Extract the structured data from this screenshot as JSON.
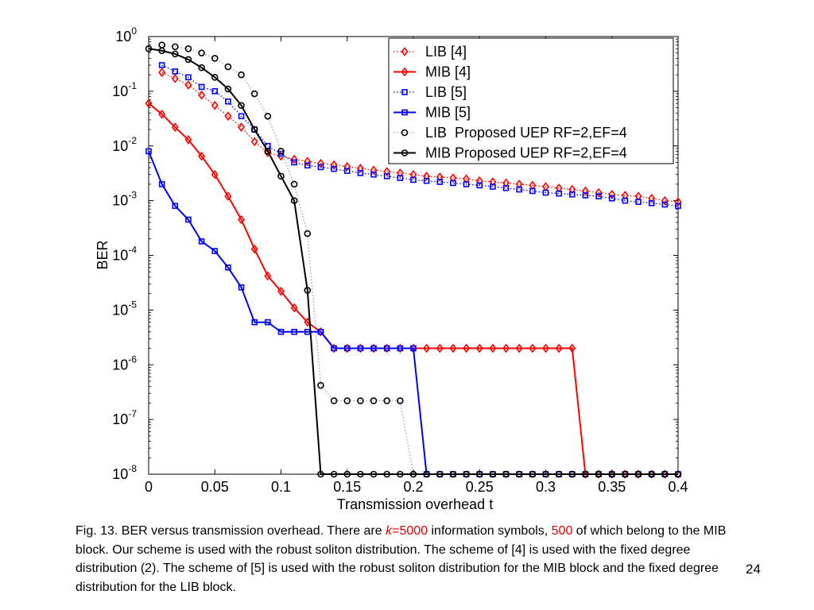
{
  "chart_data": {
    "type": "line",
    "xlabel": "Transmission overhead t",
    "ylabel": "BER",
    "xlim": [
      0,
      0.4
    ],
    "ylim": [
      1e-08,
      1
    ],
    "yscale": "log",
    "grid": false,
    "legend_position": "top-right",
    "x_ticks": [
      "0",
      "0.05",
      "0.1",
      "0.15",
      "0.2",
      "0.25",
      "0.3",
      "0.35",
      "0.4"
    ],
    "y_ticks": [
      {
        "base": "10",
        "exp": "0"
      },
      {
        "base": "10",
        "exp": "-1"
      },
      {
        "base": "10",
        "exp": "-2"
      },
      {
        "base": "10",
        "exp": "-3"
      },
      {
        "base": "10",
        "exp": "-4"
      },
      {
        "base": "10",
        "exp": "-5"
      },
      {
        "base": "10",
        "exp": "-6"
      },
      {
        "base": "10",
        "exp": "-7"
      },
      {
        "base": "10",
        "exp": "-8"
      }
    ],
    "series": [
      {
        "name": "LIB [4]",
        "color": "#ff0000",
        "marker": "diamond",
        "line": "dotted",
        "points": [
          [
            0.01,
            0.22
          ],
          [
            0.02,
            0.17
          ],
          [
            0.03,
            0.13
          ],
          [
            0.04,
            0.085
          ],
          [
            0.05,
            0.055
          ],
          [
            0.06,
            0.035
          ],
          [
            0.07,
            0.022
          ],
          [
            0.08,
            0.012
          ],
          [
            0.09,
            0.0075
          ],
          [
            0.1,
            0.0065
          ],
          [
            0.11,
            0.0057
          ],
          [
            0.12,
            0.0052
          ],
          [
            0.13,
            0.0048
          ],
          [
            0.14,
            0.0045
          ],
          [
            0.15,
            0.0042
          ],
          [
            0.16,
            0.0039
          ],
          [
            0.17,
            0.0036
          ],
          [
            0.18,
            0.0034
          ],
          [
            0.19,
            0.0032
          ],
          [
            0.2,
            0.003
          ],
          [
            0.21,
            0.0028
          ],
          [
            0.22,
            0.0027
          ],
          [
            0.23,
            0.0026
          ],
          [
            0.24,
            0.0025
          ],
          [
            0.25,
            0.0023
          ],
          [
            0.26,
            0.0022
          ],
          [
            0.27,
            0.0021
          ],
          [
            0.28,
            0.002
          ],
          [
            0.29,
            0.0019
          ],
          [
            0.3,
            0.0018
          ],
          [
            0.31,
            0.0017
          ],
          [
            0.32,
            0.0016
          ],
          [
            0.33,
            0.0015
          ],
          [
            0.34,
            0.0014
          ],
          [
            0.35,
            0.0013
          ],
          [
            0.36,
            0.00125
          ],
          [
            0.37,
            0.0012
          ],
          [
            0.38,
            0.0011
          ],
          [
            0.39,
            0.001
          ],
          [
            0.4,
            0.00095
          ]
        ]
      },
      {
        "name": "MIB [4]",
        "color": "#ff0000",
        "marker": "diamond",
        "line": "solid",
        "points": [
          [
            0,
            0.06
          ],
          [
            0.01,
            0.038
          ],
          [
            0.02,
            0.022
          ],
          [
            0.03,
            0.013
          ],
          [
            0.04,
            0.0065
          ],
          [
            0.05,
            0.003
          ],
          [
            0.06,
            0.0012
          ],
          [
            0.07,
            0.00045
          ],
          [
            0.08,
            0.00013
          ],
          [
            0.09,
            4.2e-05
          ],
          [
            0.1,
            2.2e-05
          ],
          [
            0.11,
            1.1e-05
          ],
          [
            0.12,
            6e-06
          ],
          [
            0.13,
            4e-06
          ],
          [
            0.14,
            2e-06
          ],
          [
            0.15,
            2e-06
          ],
          [
            0.16,
            2e-06
          ],
          [
            0.17,
            2e-06
          ],
          [
            0.18,
            2e-06
          ],
          [
            0.19,
            2e-06
          ],
          [
            0.2,
            2e-06
          ],
          [
            0.21,
            2e-06
          ],
          [
            0.22,
            2e-06
          ],
          [
            0.23,
            2e-06
          ],
          [
            0.24,
            2e-06
          ],
          [
            0.25,
            2e-06
          ],
          [
            0.26,
            2e-06
          ],
          [
            0.27,
            2e-06
          ],
          [
            0.28,
            2e-06
          ],
          [
            0.29,
            2e-06
          ],
          [
            0.3,
            2e-06
          ],
          [
            0.31,
            2e-06
          ],
          [
            0.32,
            2e-06
          ],
          [
            0.33,
            1e-08
          ],
          [
            0.34,
            1e-08
          ],
          [
            0.35,
            1e-08
          ],
          [
            0.36,
            1e-08
          ],
          [
            0.37,
            1e-08
          ],
          [
            0.38,
            1e-08
          ],
          [
            0.39,
            1e-08
          ],
          [
            0.4,
            1e-08
          ]
        ]
      },
      {
        "name": "LIB [5]",
        "color": "#0000ff",
        "marker": "square",
        "line": "dotted",
        "points": [
          [
            0.01,
            0.3
          ],
          [
            0.02,
            0.23
          ],
          [
            0.03,
            0.18
          ],
          [
            0.04,
            0.12
          ],
          [
            0.05,
            0.1
          ],
          [
            0.06,
            0.065
          ],
          [
            0.07,
            0.035
          ],
          [
            0.08,
            0.02
          ],
          [
            0.09,
            0.01
          ],
          [
            0.1,
            0.0072
          ],
          [
            0.11,
            0.005
          ],
          [
            0.12,
            0.0044
          ],
          [
            0.13,
            0.0041
          ],
          [
            0.14,
            0.0038
          ],
          [
            0.15,
            0.0035
          ],
          [
            0.16,
            0.0032
          ],
          [
            0.17,
            0.003
          ],
          [
            0.18,
            0.0028
          ],
          [
            0.19,
            0.0026
          ],
          [
            0.2,
            0.0024
          ],
          [
            0.21,
            0.0023
          ],
          [
            0.22,
            0.0022
          ],
          [
            0.23,
            0.0021
          ],
          [
            0.24,
            0.002
          ],
          [
            0.25,
            0.0019
          ],
          [
            0.26,
            0.0018
          ],
          [
            0.27,
            0.0017
          ],
          [
            0.28,
            0.0016
          ],
          [
            0.29,
            0.0015
          ],
          [
            0.3,
            0.0014
          ],
          [
            0.31,
            0.00135
          ],
          [
            0.32,
            0.0013
          ],
          [
            0.33,
            0.00125
          ],
          [
            0.34,
            0.0012
          ],
          [
            0.35,
            0.0011
          ],
          [
            0.36,
            0.001
          ],
          [
            0.37,
            0.00095
          ],
          [
            0.38,
            0.0009
          ],
          [
            0.39,
            0.00085
          ],
          [
            0.4,
            0.0008
          ]
        ]
      },
      {
        "name": "MIB [5]",
        "color": "#0000ff",
        "marker": "square",
        "line": "solid",
        "points": [
          [
            0,
            0.008
          ],
          [
            0.01,
            0.002
          ],
          [
            0.02,
            0.0008
          ],
          [
            0.03,
            0.00045
          ],
          [
            0.04,
            0.00018
          ],
          [
            0.05,
            0.00012
          ],
          [
            0.06,
            6e-05
          ],
          [
            0.07,
            2.6e-05
          ],
          [
            0.08,
            6e-06
          ],
          [
            0.09,
            6e-06
          ],
          [
            0.1,
            4e-06
          ],
          [
            0.11,
            4e-06
          ],
          [
            0.12,
            4e-06
          ],
          [
            0.13,
            4e-06
          ],
          [
            0.14,
            2e-06
          ],
          [
            0.15,
            2e-06
          ],
          [
            0.16,
            2e-06
          ],
          [
            0.17,
            2e-06
          ],
          [
            0.18,
            2e-06
          ],
          [
            0.19,
            2e-06
          ],
          [
            0.2,
            2e-06
          ],
          [
            0.21,
            1e-08
          ],
          [
            0.22,
            1e-08
          ],
          [
            0.23,
            1e-08
          ],
          [
            0.24,
            1e-08
          ],
          [
            0.25,
            1e-08
          ],
          [
            0.26,
            1e-08
          ],
          [
            0.27,
            1e-08
          ],
          [
            0.28,
            1e-08
          ],
          [
            0.29,
            1e-08
          ],
          [
            0.3,
            1e-08
          ],
          [
            0.31,
            1e-08
          ],
          [
            0.32,
            1e-08
          ],
          [
            0.33,
            1e-08
          ],
          [
            0.34,
            1e-08
          ],
          [
            0.35,
            1e-08
          ],
          [
            0.36,
            1e-08
          ],
          [
            0.37,
            1e-08
          ],
          [
            0.38,
            1e-08
          ],
          [
            0.39,
            1e-08
          ],
          [
            0.4,
            1e-08
          ]
        ]
      },
      {
        "name": "LIB  Proposed UEP RF=2,EF=4",
        "color": "#000000",
        "marker": "circle",
        "line": "dotted",
        "line_color": "#a0a0a0",
        "points": [
          [
            0.01,
            0.7
          ],
          [
            0.02,
            0.65
          ],
          [
            0.03,
            0.6
          ],
          [
            0.04,
            0.5
          ],
          [
            0.05,
            0.4
          ],
          [
            0.06,
            0.28
          ],
          [
            0.07,
            0.2
          ],
          [
            0.08,
            0.09
          ],
          [
            0.09,
            0.035
          ],
          [
            0.1,
            0.008
          ],
          [
            0.11,
            0.002
          ],
          [
            0.12,
            0.00025
          ],
          [
            0.13,
            4.2e-07
          ],
          [
            0.14,
            2.2e-07
          ],
          [
            0.15,
            2.2e-07
          ],
          [
            0.16,
            2.2e-07
          ],
          [
            0.17,
            2.2e-07
          ],
          [
            0.18,
            2.2e-07
          ],
          [
            0.19,
            2.2e-07
          ],
          [
            0.2,
            1e-08
          ],
          [
            0.21,
            1e-08
          ],
          [
            0.22,
            1e-08
          ],
          [
            0.23,
            1e-08
          ],
          [
            0.24,
            1e-08
          ],
          [
            0.25,
            1e-08
          ],
          [
            0.26,
            1e-08
          ],
          [
            0.27,
            1e-08
          ],
          [
            0.28,
            1e-08
          ],
          [
            0.29,
            1e-08
          ],
          [
            0.3,
            1e-08
          ],
          [
            0.31,
            1e-08
          ],
          [
            0.32,
            1e-08
          ],
          [
            0.33,
            1e-08
          ],
          [
            0.34,
            1e-08
          ],
          [
            0.35,
            1e-08
          ],
          [
            0.36,
            1e-08
          ],
          [
            0.37,
            1e-08
          ],
          [
            0.38,
            1e-08
          ],
          [
            0.39,
            1e-08
          ],
          [
            0.4,
            1e-08
          ]
        ]
      },
      {
        "name": "MIB Proposed UEP RF=2,EF=4",
        "color": "#000000",
        "marker": "circle",
        "line": "solid",
        "points": [
          [
            0,
            0.6
          ],
          [
            0.01,
            0.55
          ],
          [
            0.02,
            0.48
          ],
          [
            0.03,
            0.38
          ],
          [
            0.04,
            0.27
          ],
          [
            0.05,
            0.18
          ],
          [
            0.06,
            0.11
          ],
          [
            0.07,
            0.055
          ],
          [
            0.08,
            0.02
          ],
          [
            0.09,
            0.008
          ],
          [
            0.1,
            0.0028
          ],
          [
            0.11,
            0.001
          ],
          [
            0.12,
            2.3e-05
          ],
          [
            0.13,
            1e-08
          ],
          [
            0.14,
            1e-08
          ],
          [
            0.15,
            1e-08
          ],
          [
            0.16,
            1e-08
          ],
          [
            0.17,
            1e-08
          ],
          [
            0.18,
            1e-08
          ],
          [
            0.19,
            1e-08
          ],
          [
            0.2,
            1e-08
          ],
          [
            0.21,
            1e-08
          ],
          [
            0.22,
            1e-08
          ],
          [
            0.23,
            1e-08
          ],
          [
            0.24,
            1e-08
          ],
          [
            0.25,
            1e-08
          ],
          [
            0.26,
            1e-08
          ],
          [
            0.27,
            1e-08
          ],
          [
            0.28,
            1e-08
          ],
          [
            0.29,
            1e-08
          ],
          [
            0.3,
            1e-08
          ],
          [
            0.31,
            1e-08
          ],
          [
            0.32,
            1e-08
          ],
          [
            0.33,
            1e-08
          ],
          [
            0.34,
            1e-08
          ],
          [
            0.35,
            1e-08
          ],
          [
            0.36,
            1e-08
          ],
          [
            0.37,
            1e-08
          ],
          [
            0.38,
            1e-08
          ],
          [
            0.39,
            1e-08
          ],
          [
            0.4,
            1e-08
          ]
        ]
      }
    ]
  },
  "caption": {
    "part1": "Fig. 13. BER versus transmission overhead. There are ",
    "k_symbol": "k",
    "k_value": "=5000",
    "part2": " information symbols, ",
    "mib_count": "500",
    "part3": " of which belong to the MIB block. Our scheme is used with the robust soliton distribution. The scheme of [4] is used with the fixed degree distribution (2). The scheme of [5] is used with the robust soliton distribution for the MIB block and the fixed degree distribution for the LIB block."
  },
  "page_number": "24"
}
